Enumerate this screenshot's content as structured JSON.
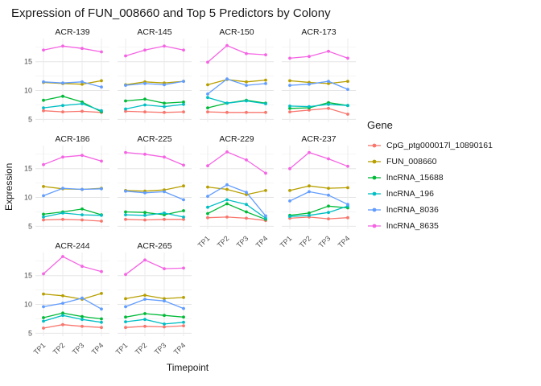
{
  "title": "Expression of FUN_008660 and Top 5 Predictors by Colony",
  "axes": {
    "x_label": "Timepoint",
    "y_label": "Expression"
  },
  "legend": {
    "title": "Gene",
    "position": "right",
    "items": [
      {
        "label": "CpG_ptg000017l_10890161",
        "color": "#F8766D"
      },
      {
        "label": "FUN_008660",
        "color": "#B79F00"
      },
      {
        "label": "lncRNA_15688",
        "color": "#00BA38"
      },
      {
        "label": "lncRNA_196",
        "color": "#00BFC4"
      },
      {
        "label": "lncRNA_8036",
        "color": "#619CFF"
      },
      {
        "label": "lncRNA_8635",
        "color": "#F564E3"
      }
    ]
  },
  "chart_data": {
    "type": "line",
    "title": "Expression of FUN_008660 and Top 5 Predictors by Colony",
    "xlabel": "Timepoint",
    "ylabel": "Expression",
    "x": [
      "TP1",
      "TP2",
      "TP3",
      "TP4"
    ],
    "y_ticks": [
      5,
      10,
      15
    ],
    "ylim": [
      4.5,
      19
    ],
    "grid": true,
    "legend_position": "right",
    "series_order": [
      "CpG_ptg000017l_10890161",
      "FUN_008660",
      "lncRNA_15688",
      "lncRNA_196",
      "lncRNA_8036",
      "lncRNA_8635"
    ],
    "facets": [
      {
        "name": "ACR-139",
        "values": [
          [
            6.5,
            6.3,
            6.4,
            6.2
          ],
          [
            11.4,
            11.2,
            11.1,
            11.7
          ],
          [
            8.3,
            9.0,
            8.0,
            6.3
          ],
          [
            7.0,
            7.4,
            7.7,
            6.5
          ],
          [
            11.5,
            11.3,
            11.5,
            10.6
          ],
          [
            17.0,
            17.7,
            17.3,
            16.7
          ]
        ]
      },
      {
        "name": "ACR-145",
        "values": [
          [
            6.4,
            6.3,
            6.2,
            6.3
          ],
          [
            11.0,
            11.5,
            11.3,
            11.6
          ],
          [
            8.2,
            8.5,
            7.8,
            8.0
          ],
          [
            6.8,
            7.5,
            7.2,
            7.6
          ],
          [
            10.9,
            11.2,
            11.0,
            11.6
          ],
          [
            16.0,
            17.0,
            17.7,
            17.0
          ]
        ]
      },
      {
        "name": "ACR-150",
        "values": [
          [
            6.3,
            6.2,
            6.2,
            6.2
          ],
          [
            11.0,
            11.9,
            11.5,
            11.8
          ],
          [
            7.0,
            7.8,
            8.3,
            7.8
          ],
          [
            8.8,
            7.8,
            8.2,
            7.7
          ],
          [
            9.4,
            12.0,
            10.9,
            11.2
          ],
          [
            14.9,
            17.8,
            16.4,
            16.2
          ]
        ]
      },
      {
        "name": "ACR-173",
        "values": [
          [
            6.3,
            6.6,
            6.9,
            5.9
          ],
          [
            11.7,
            11.4,
            11.2,
            11.6
          ],
          [
            6.9,
            7.0,
            7.9,
            7.4
          ],
          [
            7.3,
            7.2,
            7.6,
            7.4
          ],
          [
            10.9,
            11.1,
            11.6,
            10.2
          ],
          [
            15.6,
            15.9,
            16.8,
            15.6
          ]
        ]
      },
      {
        "name": "ACR-186",
        "values": [
          [
            6.1,
            6.2,
            6.1,
            5.9
          ],
          [
            11.9,
            11.5,
            11.4,
            11.6
          ],
          [
            7.1,
            7.5,
            8.0,
            7.0
          ],
          [
            6.6,
            7.3,
            7.0,
            6.9
          ],
          [
            10.3,
            11.6,
            11.4,
            11.5
          ],
          [
            15.7,
            17.0,
            17.3,
            16.3
          ]
        ]
      },
      {
        "name": "ACR-225",
        "values": [
          [
            6.2,
            6.1,
            6.2,
            6.2
          ],
          [
            11.2,
            11.1,
            11.3,
            12.0
          ],
          [
            7.5,
            7.4,
            7.0,
            7.7
          ],
          [
            7.0,
            6.9,
            7.3,
            6.6
          ],
          [
            11.1,
            10.8,
            11.0,
            9.6
          ],
          [
            17.8,
            17.5,
            17.0,
            15.6
          ]
        ]
      },
      {
        "name": "ACR-229",
        "values": [
          [
            6.5,
            6.6,
            6.4,
            6.0
          ],
          [
            11.8,
            11.4,
            10.5,
            11.2
          ],
          [
            7.2,
            8.9,
            7.5,
            6.2
          ],
          [
            8.3,
            9.6,
            8.8,
            6.4
          ],
          [
            10.2,
            12.2,
            10.9,
            6.8
          ],
          [
            15.5,
            17.9,
            16.5,
            14.2
          ]
        ]
      },
      {
        "name": "ACR-237",
        "values": [
          [
            6.4,
            6.6,
            6.3,
            6.5
          ],
          [
            11.2,
            12.0,
            11.6,
            11.7
          ],
          [
            6.9,
            7.3,
            8.5,
            8.2
          ],
          [
            6.7,
            6.9,
            7.4,
            8.5
          ],
          [
            9.4,
            11.0,
            10.4,
            8.8
          ],
          [
            15.0,
            17.8,
            16.7,
            15.4
          ]
        ]
      },
      {
        "name": "ACR-244",
        "values": [
          [
            5.9,
            6.5,
            6.2,
            6.0
          ],
          [
            11.8,
            11.5,
            10.9,
            11.9
          ],
          [
            7.7,
            8.5,
            7.9,
            7.5
          ],
          [
            7.1,
            8.1,
            7.4,
            6.9
          ],
          [
            9.6,
            10.2,
            11.1,
            9.2
          ],
          [
            15.3,
            18.3,
            16.6,
            15.7
          ]
        ]
      },
      {
        "name": "ACR-265",
        "values": [
          [
            6.0,
            6.2,
            6.1,
            6.3
          ],
          [
            11.0,
            11.6,
            11.0,
            11.2
          ],
          [
            7.8,
            8.4,
            8.1,
            7.8
          ],
          [
            7.0,
            7.4,
            6.6,
            6.9
          ],
          [
            9.6,
            10.9,
            10.6,
            9.3
          ],
          [
            15.2,
            17.7,
            16.2,
            16.3
          ]
        ]
      }
    ]
  }
}
